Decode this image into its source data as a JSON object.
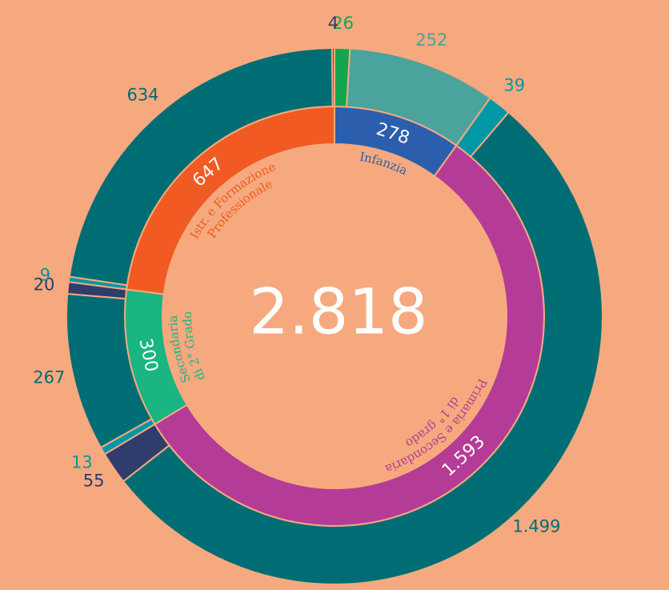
{
  "chart_data": {
    "type": "sunburst",
    "center_label": "2.818",
    "categories": [
      [
        "Infanzia"
      ],
      [
        "Primaria e Secondaria",
        "di 1° grado"
      ],
      [
        "Secondaria",
        "di 2° Grado"
      ],
      [
        "Istr. e Formazione",
        "Professionale"
      ]
    ],
    "values": [
      278,
      1593,
      300,
      647
    ],
    "value_labels": [
      "278",
      "1.593",
      "300",
      "647"
    ],
    "colors": [
      "#2b5fad",
      "#b43c96",
      "#19b582",
      "#f15a22"
    ],
    "children": [
      {
        "values": [
          26,
          252
        ],
        "value_labels": [
          "26",
          "252"
        ],
        "colors": [
          "#12a64f",
          "#4aa39d"
        ]
      },
      {
        "values": [
          39,
          1499,
          55
        ],
        "value_labels": [
          "39",
          "1.499",
          "55"
        ],
        "colors": [
          "#0097a7",
          "#006d75",
          "#2e3d6b"
        ]
      },
      {
        "values": [
          13,
          267,
          20
        ],
        "value_labels": [
          "13",
          "267",
          "20"
        ],
        "colors": [
          "#0097a7",
          "#006d75",
          "#2e3d6b"
        ]
      },
      {
        "values": [
          9,
          634,
          4
        ],
        "value_labels": [
          "9",
          "634",
          "4"
        ],
        "colors": [
          "#0097a7",
          "#006d75",
          "#2e3d6b"
        ]
      }
    ]
  }
}
